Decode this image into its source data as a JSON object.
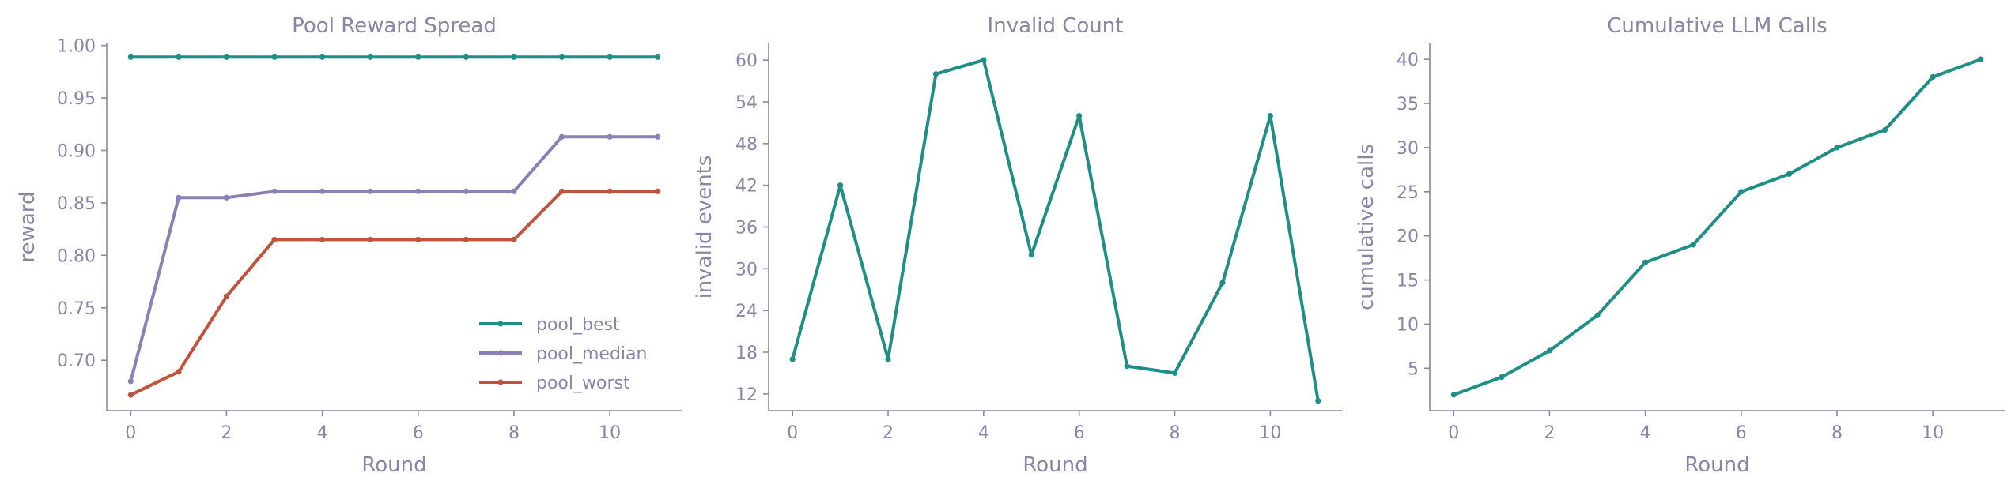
{
  "chart_data": [
    {
      "type": "line",
      "title": "Pool Reward Spread",
      "xlabel": "Round",
      "ylabel": "reward",
      "xlim": [
        -0.5,
        11.5
      ],
      "ylim": [
        0.652,
        1.002
      ],
      "xticks": [
        0,
        2,
        4,
        6,
        8,
        10
      ],
      "yticks": [
        0.7,
        0.75,
        0.8,
        0.85,
        0.9,
        0.95,
        1.0
      ],
      "ytick_labels": [
        "0.70",
        "0.75",
        "0.80",
        "0.85",
        "0.90",
        "0.95",
        "1.00"
      ],
      "legend_position": "lower-right",
      "x": [
        0,
        1,
        2,
        3,
        4,
        5,
        6,
        7,
        8,
        9,
        10,
        11
      ],
      "series": [
        {
          "name": "pool_best",
          "color": "#1f8f86",
          "values": [
            0.989,
            0.989,
            0.989,
            0.989,
            0.989,
            0.989,
            0.989,
            0.989,
            0.989,
            0.989,
            0.989,
            0.989
          ]
        },
        {
          "name": "pool_median",
          "color": "#8b7fb6",
          "values": [
            0.68,
            0.855,
            0.855,
            0.861,
            0.861,
            0.861,
            0.861,
            0.861,
            0.861,
            0.913,
            0.913,
            0.913
          ]
        },
        {
          "name": "pool_worst",
          "color": "#c0533b",
          "values": [
            0.667,
            0.689,
            0.761,
            0.815,
            0.815,
            0.815,
            0.815,
            0.815,
            0.815,
            0.861,
            0.861,
            0.861
          ]
        }
      ]
    },
    {
      "type": "line",
      "title": "Invalid Count",
      "xlabel": "Round",
      "ylabel": "invalid events",
      "xlim": [
        -0.5,
        11.5
      ],
      "ylim": [
        9.6,
        62.4
      ],
      "xticks": [
        0,
        2,
        4,
        6,
        8,
        10
      ],
      "yticks": [
        12,
        18,
        24,
        30,
        36,
        42,
        48,
        54,
        60
      ],
      "ytick_labels": [
        "12",
        "18",
        "24",
        "30",
        "36",
        "42",
        "48",
        "54",
        "60"
      ],
      "x": [
        0,
        1,
        2,
        3,
        4,
        5,
        6,
        7,
        8,
        9,
        10,
        11
      ],
      "series": [
        {
          "color": "#1f8f86",
          "values": [
            17,
            42,
            17,
            58,
            60,
            32,
            52,
            16,
            15,
            28,
            52,
            11
          ]
        }
      ]
    },
    {
      "type": "line",
      "title": "Cumulative LLM Calls",
      "xlabel": "Round",
      "ylabel": "cumulative calls",
      "xlim": [
        -0.5,
        11.5
      ],
      "ylim": [
        0.2,
        41.8
      ],
      "xticks": [
        0,
        2,
        4,
        6,
        8,
        10
      ],
      "yticks": [
        5,
        10,
        15,
        20,
        25,
        30,
        35,
        40
      ],
      "ytick_labels": [
        "5",
        "10",
        "15",
        "20",
        "25",
        "30",
        "35",
        "40"
      ],
      "x": [
        0,
        1,
        2,
        3,
        4,
        5,
        6,
        7,
        8,
        9,
        10,
        11
      ],
      "series": [
        {
          "color": "#1f8f86",
          "values": [
            2,
            4,
            7,
            11,
            17,
            19,
            25,
            27,
            30,
            32,
            38,
            40
          ]
        }
      ]
    }
  ]
}
